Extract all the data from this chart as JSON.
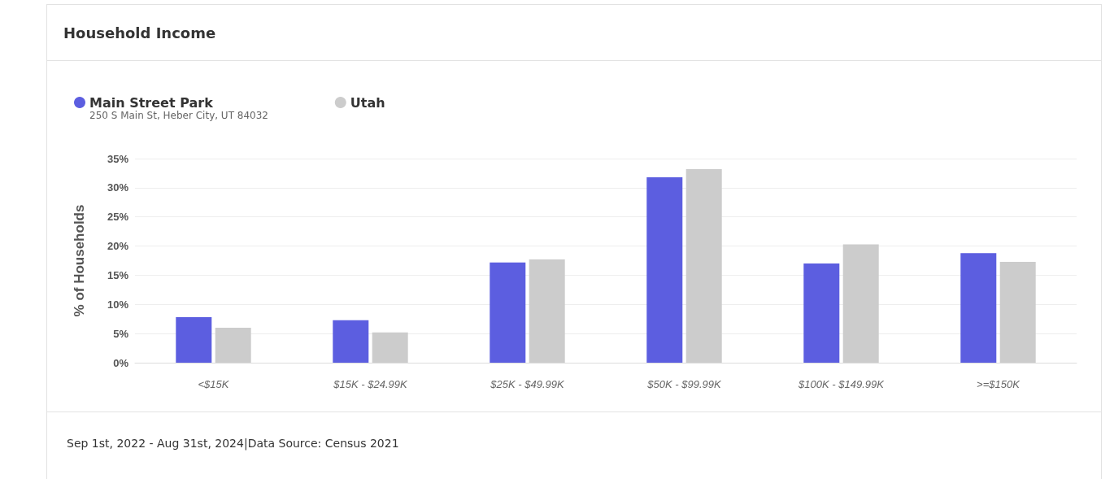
{
  "chart_data": {
    "type": "bar",
    "title": "Household Income",
    "subtitle": "250 S Main St, Heber City, UT 84032",
    "ylabel": "% of Households",
    "categories": [
      "<$15K",
      "$15K - $24.99K",
      "$25K - $49.99K",
      "$50K - $99.99K",
      "$100K - $149.99K",
      ">=$150K"
    ],
    "series": [
      {
        "name": "Main Street Park",
        "color": "#5c5ee0",
        "values": [
          7.8,
          7.3,
          17.2,
          31.8,
          17.0,
          18.8
        ]
      },
      {
        "name": "Utah",
        "color": "#cccccc",
        "values": [
          6.0,
          5.2,
          17.7,
          33.2,
          20.3,
          17.3
        ]
      }
    ],
    "ylim": [
      0,
      35
    ],
    "yticks": [
      {
        "value": 0,
        "label": "0%"
      },
      {
        "value": 5,
        "label": "5%"
      },
      {
        "value": 10,
        "label": "10%"
      },
      {
        "value": 15,
        "label": "15%"
      },
      {
        "value": 20,
        "label": "20%"
      },
      {
        "value": 25,
        "label": "25%"
      },
      {
        "value": 30,
        "label": "30%"
      },
      {
        "value": 35,
        "label": "35%"
      }
    ],
    "grid": "y",
    "legend": "top left",
    "annotations": [
      "Sep 1st, 2022 - Aug 31st, 2024|Data Source: Census 2021"
    ]
  }
}
